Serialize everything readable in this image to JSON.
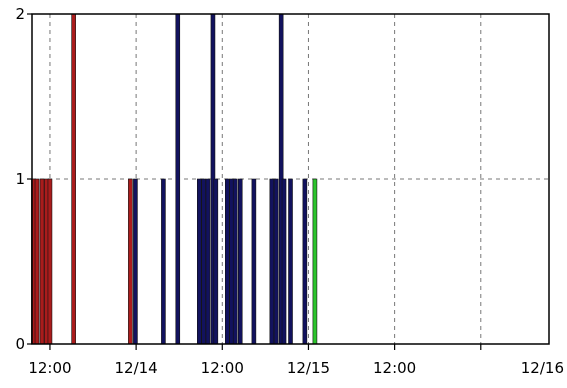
{
  "chart_data": {
    "type": "bar",
    "title": "",
    "xlabel": "",
    "ylabel": "",
    "x_unit": "hours since the start of 12/13",
    "xlim": [
      9.5,
      81.5
    ],
    "ylim": [
      0,
      2
    ],
    "y_ticks": [
      0,
      1,
      2
    ],
    "x_ticks": [
      {
        "x": 12,
        "label": "12:00"
      },
      {
        "x": 24,
        "label": "12/14"
      },
      {
        "x": 36,
        "label": "12:00"
      },
      {
        "x": 48,
        "label": "12/15"
      },
      {
        "x": 60,
        "label": "12:00"
      },
      {
        "x": 72,
        "label": "12/16"
      }
    ],
    "grid": true,
    "legend": "none",
    "series_colors": {
      "red": "#aa1c1c",
      "navy": "#12125e",
      "green": "#2cc42c"
    },
    "bars": [
      {
        "x": 9.7,
        "value": 1,
        "color": "red"
      },
      {
        "x": 10.2,
        "value": 1,
        "color": "red"
      },
      {
        "x": 10.9,
        "value": 1,
        "color": "red"
      },
      {
        "x": 11.5,
        "value": 1,
        "color": "red"
      },
      {
        "x": 12.0,
        "value": 1,
        "color": "red"
      },
      {
        "x": 15.3,
        "value": 2,
        "color": "red"
      },
      {
        "x": 23.2,
        "value": 1,
        "color": "red"
      },
      {
        "x": 23.9,
        "value": 1,
        "color": "navy"
      },
      {
        "x": 27.8,
        "value": 1,
        "color": "navy"
      },
      {
        "x": 29.8,
        "value": 2,
        "color": "navy"
      },
      {
        "x": 32.8,
        "value": 1,
        "color": "navy"
      },
      {
        "x": 33.4,
        "value": 1,
        "color": "navy"
      },
      {
        "x": 34.0,
        "value": 1,
        "color": "navy"
      },
      {
        "x": 34.7,
        "value": 2,
        "color": "navy"
      },
      {
        "x": 35.1,
        "value": 1,
        "color": "navy"
      },
      {
        "x": 36.7,
        "value": 1,
        "color": "navy"
      },
      {
        "x": 37.3,
        "value": 1,
        "color": "navy"
      },
      {
        "x": 37.8,
        "value": 1,
        "color": "navy"
      },
      {
        "x": 38.5,
        "value": 1,
        "color": "navy"
      },
      {
        "x": 40.4,
        "value": 1,
        "color": "navy"
      },
      {
        "x": 42.9,
        "value": 1,
        "color": "navy"
      },
      {
        "x": 43.5,
        "value": 1,
        "color": "navy"
      },
      {
        "x": 44.2,
        "value": 2,
        "color": "navy"
      },
      {
        "x": 44.6,
        "value": 1,
        "color": "navy"
      },
      {
        "x": 45.5,
        "value": 1,
        "color": "navy"
      },
      {
        "x": 47.5,
        "value": 1,
        "color": "navy"
      },
      {
        "x": 48.9,
        "value": 1,
        "color": "green"
      }
    ]
  }
}
